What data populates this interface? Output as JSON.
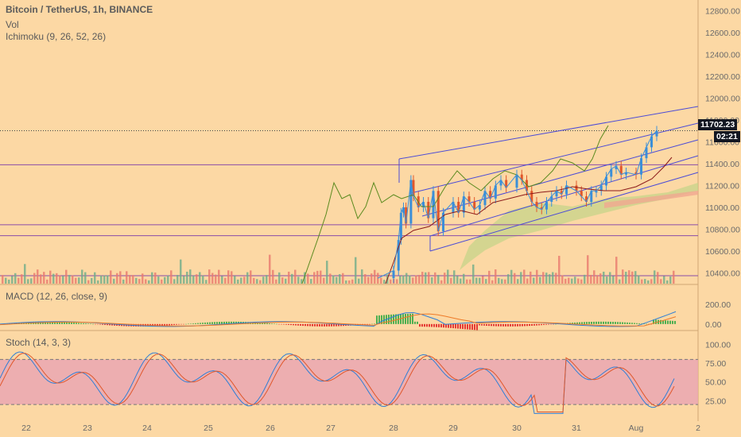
{
  "header": {
    "symbol": "Bitcoin / TetherUS, 1h, BINANCE",
    "vol_label": "Vol",
    "ichimoku_label": "Ichimoku (9, 26, 52, 26)"
  },
  "macd_label": "MACD (12, 26, close, 9)",
  "stoch_label": "Stoch (14, 3, 3)",
  "price_tag": "11702.23",
  "countdown_tag": "02:21",
  "colors": {
    "background": "#fcd8a4",
    "up": "#3b8fd8",
    "down": "#e0572b",
    "channel": "#4c4cd6",
    "hline": "#8a4ca8",
    "tenkan": "#3b8fd8",
    "kijun": "#8b1a1a",
    "chikou": "#5a8a1e",
    "cloud": "#c7d48a",
    "stoch_band": "#eaa7b3"
  },
  "chart_data": [
    {
      "type": "line",
      "title": "Bitcoin / TetherUS, 1h, BINANCE",
      "price_axis": {
        "ylim": [
          10300,
          12900
        ],
        "ticks": [
          "12800.00",
          "12600.00",
          "12400.00",
          "12200.00",
          "12000.00",
          "11800.00",
          "11600.00",
          "11400.00",
          "11200.00",
          "11000.00",
          "10800.00",
          "10600.00",
          "10400.00"
        ]
      },
      "x_ticks": [
        "22",
        "23",
        "24",
        "25",
        "26",
        "27",
        "28",
        "29",
        "30",
        "31",
        "Aug",
        "2"
      ],
      "last_price": 11702.23,
      "horizontal_levels": [
        11390,
        10840,
        10740
      ],
      "price_path": [
        {
          "x": "27 18:00",
          "close": 10350
        },
        {
          "x": "28 00:00",
          "close": 10420
        },
        {
          "x": "28 02:00",
          "close": 10700
        },
        {
          "x": "28 03:00",
          "close": 10950
        },
        {
          "x": "28 04:00",
          "close": 11000
        },
        {
          "x": "28 05:00",
          "close": 10850
        },
        {
          "x": "28 07:00",
          "close": 11250
        },
        {
          "x": "28 08:00",
          "close": 11100
        },
        {
          "x": "28 10:00",
          "close": 11000
        },
        {
          "x": "28 12:00",
          "close": 11050
        },
        {
          "x": "28 14:00",
          "close": 10900
        },
        {
          "x": "28 16:00",
          "close": 11150
        },
        {
          "x": "28 18:00",
          "close": 10780
        },
        {
          "x": "28 20:00",
          "close": 10950
        },
        {
          "x": "29 00:00",
          "close": 11050
        },
        {
          "x": "29 02:00",
          "close": 10950
        },
        {
          "x": "29 04:00",
          "close": 11100
        },
        {
          "x": "29 06:00",
          "close": 11050
        },
        {
          "x": "29 08:00",
          "close": 10980
        },
        {
          "x": "29 10:00",
          "close": 11020
        },
        {
          "x": "29 12:00",
          "close": 11150
        },
        {
          "x": "29 14:00",
          "close": 11080
        },
        {
          "x": "29 16:00",
          "close": 11200
        },
        {
          "x": "29 18:00",
          "close": 11250
        },
        {
          "x": "29 20:00",
          "close": 11180
        },
        {
          "x": "30 00:00",
          "close": 11300
        },
        {
          "x": "30 02:00",
          "close": 11250
        },
        {
          "x": "30 04:00",
          "close": 11150
        },
        {
          "x": "30 06:00",
          "close": 11050
        },
        {
          "x": "30 08:00",
          "close": 11000
        },
        {
          "x": "30 10:00",
          "close": 10980
        },
        {
          "x": "30 12:00",
          "close": 11050
        },
        {
          "x": "30 14:00",
          "close": 11100
        },
        {
          "x": "30 16:00",
          "close": 11150
        },
        {
          "x": "30 18:00",
          "close": 11120
        },
        {
          "x": "30 20:00",
          "close": 11200
        },
        {
          "x": "31 00:00",
          "close": 11150
        },
        {
          "x": "31 02:00",
          "close": 11100
        },
        {
          "x": "31 04:00",
          "close": 11050
        },
        {
          "x": "31 06:00",
          "close": 11150
        },
        {
          "x": "31 08:00",
          "close": 11150
        },
        {
          "x": "31 10:00",
          "close": 11200
        },
        {
          "x": "31 12:00",
          "close": 11280
        },
        {
          "x": "31 14:00",
          "close": 11350
        },
        {
          "x": "31 16:00",
          "close": 11380
        },
        {
          "x": "31 18:00",
          "close": 11300
        },
        {
          "x": "31 20:00",
          "close": 11320
        },
        {
          "x": "Aug 00:00",
          "close": 11300
        },
        {
          "x": "Aug 02:00",
          "close": 11450
        },
        {
          "x": "Aug 04:00",
          "close": 11550
        },
        {
          "x": "Aug 06:00",
          "close": 11650
        },
        {
          "x": "Aug 08:00",
          "close": 11702
        }
      ]
    },
    {
      "type": "line",
      "title": "MACD (12, 26, close, 9)",
      "ylim": [
        -50,
        290
      ],
      "ticks": [
        "200.00",
        "0.00"
      ]
    },
    {
      "type": "line",
      "title": "Stoch (14, 3, 3)",
      "ylim": [
        0,
        110
      ],
      "ticks": [
        "100.00",
        "75.00",
        "50.00",
        "25.00"
      ],
      "bands": [
        20,
        80
      ]
    }
  ]
}
